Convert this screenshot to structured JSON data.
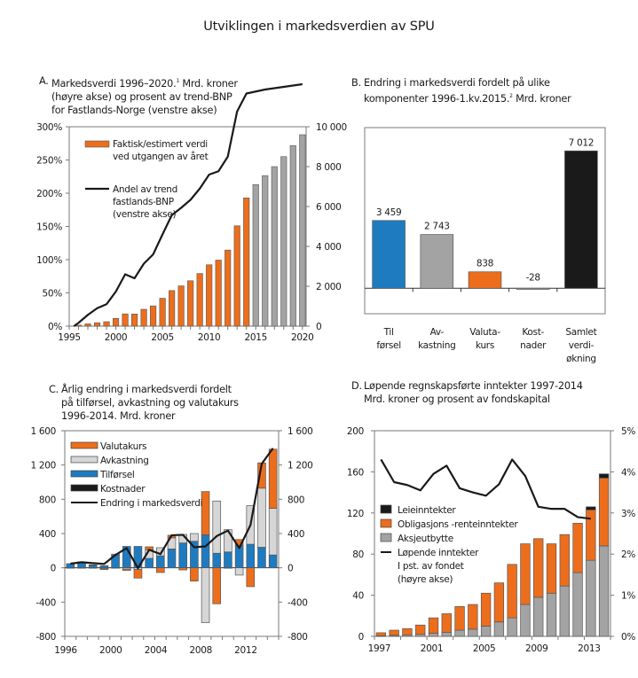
{
  "page_title": "Utviklingen i markedsverdien av SPU",
  "colors": {
    "orange": "#ec6e1c",
    "gray": "#a3a3a3",
    "lightgray": "#d6d6d6",
    "blue": "#1f7bc0",
    "black": "#1a1a1a"
  },
  "chart_data": [
    {
      "id": "A",
      "type": "bar",
      "title_letter": "A.",
      "title_lines": [
        "Markedsverdi 1996–2020.",
        "(høyre akse) og prosent av trend-BNP",
        "for Fastlands-Norge (venstre akse)"
      ],
      "title_sup": "1",
      "title_after_sup": " Mrd. kroner",
      "x": [
        1996,
        1997,
        1998,
        1999,
        2000,
        2001,
        2002,
        2003,
        2004,
        2005,
        2006,
        2007,
        2008,
        2009,
        2010,
        2011,
        2012,
        2013,
        2014,
        2015,
        2016,
        2017,
        2018,
        2019,
        2020
      ],
      "xticks": [
        "1995",
        "2000",
        "2005",
        "2010",
        "2015",
        "2020"
      ],
      "xtick_values": [
        1995,
        2000,
        2005,
        2010,
        2015,
        2020
      ],
      "bars": {
        "name": "Faktisk/estimert verdi ved utgangen av året",
        "values": [
          48,
          113,
          172,
          222,
          386,
          614,
          609,
          845,
          1016,
          1399,
          1784,
          2019,
          2275,
          2640,
          3077,
          3312,
          3816,
          5032,
          6431,
          7100,
          7550,
          8000,
          8500,
          9050,
          9600
        ],
        "estimated_from": 2015
      },
      "line": {
        "name": "Andel av trend fastlands-BNP (venstre akse)",
        "x": [
          1995.5,
          1996,
          1997,
          1998,
          1999,
          2000,
          2001,
          2002,
          2003,
          2004,
          2005,
          2006,
          2007,
          2008,
          2009,
          2010,
          2011,
          2012,
          2013,
          2014,
          2015,
          2016,
          2017,
          2018,
          2019,
          2020
        ],
        "values": [
          0,
          5,
          17,
          27,
          33,
          52,
          78,
          72,
          94,
          108,
          138,
          167,
          178,
          190,
          207,
          228,
          233,
          255,
          323,
          350,
          353,
          356,
          358,
          360,
          362,
          364
        ]
      },
      "legend": [
        {
          "label_lines": [
            "Faktisk/estimert verdi",
            "ved utgangen av året"
          ],
          "type": "bar",
          "color": "orange"
        },
        {
          "label_lines": [
            "Andel av trend",
            "fastlands-BNP",
            "(venstre akse)"
          ],
          "type": "line",
          "color": "black"
        }
      ],
      "yleft": {
        "ticks": [
          "0%",
          "50%",
          "100%",
          "150%",
          "200%",
          "250%",
          "300%"
        ],
        "range": [
          0,
          300
        ]
      },
      "yright": {
        "ticks": [
          "0",
          "2 000",
          "4 000",
          "6 000",
          "8 000",
          "10 000"
        ],
        "range": [
          0,
          10000
        ]
      }
    },
    {
      "id": "B",
      "type": "bar",
      "title_letter": "B.",
      "title_lines": [
        "Endring i markedsverdi fordelt på ulike",
        "komponenter 1996-1.kv.2015."
      ],
      "title_sup": "2",
      "title_after_sup": " Mrd. kroner",
      "categories": [
        [
          "Til",
          "førsel"
        ],
        [
          "Av-",
          "kastning"
        ],
        [
          "Valuta-",
          "kurs"
        ],
        [
          "Kost-",
          "nader"
        ],
        [
          "Samlet",
          "verdi-",
          "økning"
        ]
      ],
      "values": [
        3459,
        2743,
        838,
        -28,
        7012
      ],
      "labels": [
        "3 459",
        "2 743",
        "838",
        "-28",
        "7 012"
      ],
      "bar_colors": [
        "blue",
        "gray",
        "orange",
        "gray",
        "black"
      ],
      "ylim": [
        -1300,
        8200
      ]
    },
    {
      "id": "C",
      "type": "bar",
      "stacked": true,
      "title_letter": "C.",
      "title_lines": [
        "Årlig endring i markedsverdi fordelt",
        "på tilførsel, avkastning og valutakurs",
        "1996-2014. Mrd. kroner"
      ],
      "x": [
        1996,
        1997,
        1998,
        1999,
        2000,
        2001,
        2002,
        2003,
        2004,
        2005,
        2006,
        2007,
        2008,
        2009,
        2010,
        2011,
        2012,
        2013,
        2014
      ],
      "xticks": [
        "1996",
        "2000",
        "2004",
        "2008",
        "2012"
      ],
      "xtick_values": [
        1996,
        2000,
        2004,
        2008,
        2012
      ],
      "series": [
        {
          "name": "Tilførsel",
          "color": "blue",
          "values": [
            48,
            60,
            30,
            25,
            150,
            250,
            250,
            110,
            140,
            220,
            290,
            310,
            385,
            170,
            185,
            260,
            275,
            240,
            150
          ]
        },
        {
          "name": "Avkastning",
          "color": "lightgray",
          "values": [
            0,
            10,
            5,
            -10,
            10,
            -15,
            -20,
            100,
            95,
            130,
            100,
            90,
            -640,
            610,
            260,
            -85,
            450,
            690,
            545
          ]
        },
        {
          "name": "Valutakurs",
          "color": "orange",
          "values": [
            -5,
            -5,
            -5,
            -10,
            -5,
            -15,
            -100,
            35,
            -55,
            30,
            -25,
            -155,
            505,
            -420,
            -5,
            70,
            -220,
            295,
            690
          ]
        },
        {
          "name": "Kostnader",
          "color": "black",
          "values": [
            0,
            0,
            0,
            0,
            0,
            0,
            0,
            0,
            0,
            0,
            0,
            0,
            0,
            0,
            0,
            0,
            0,
            0,
            0
          ]
        }
      ],
      "line": {
        "name": "Endring i markedsverdi",
        "values": [
          48,
          65,
          55,
          45,
          150,
          230,
          -5,
          210,
          160,
          380,
          385,
          240,
          250,
          370,
          435,
          230,
          500,
          1215,
          1395
        ]
      },
      "legend": [
        "Valutakurs",
        "Avkastning",
        "Tilførsel",
        "Kostnader",
        "Endring i markedsverdi"
      ],
      "yticks": [
        "-800",
        "-400",
        "0",
        "400",
        "800",
        "1 200",
        "1 600"
      ],
      "ylim": [
        -800,
        1600
      ]
    },
    {
      "id": "D",
      "type": "bar",
      "stacked": true,
      "title_letter": "D.",
      "title_lines": [
        "Løpende regnskapsførte inntekter 1997-2014",
        "Mrd. kroner og prosent av fondskapital"
      ],
      "x": [
        1997,
        1998,
        1999,
        2000,
        2001,
        2002,
        2003,
        2004,
        2005,
        2006,
        2007,
        2008,
        2009,
        2010,
        2011,
        2012,
        2013,
        2014
      ],
      "xticks": [
        "1997",
        "2001",
        "2005",
        "2009",
        "2013"
      ],
      "xtick_values": [
        1997,
        2001,
        2005,
        2009,
        2013
      ],
      "series": [
        {
          "name": "Aksjeutbytte",
          "color": "gray",
          "values": [
            0.5,
            1,
            1.5,
            2,
            3,
            4,
            6,
            7,
            10,
            14,
            18,
            31,
            38,
            42,
            49,
            62,
            74,
            88
          ]
        },
        {
          "name": "Obligasjons -renteinntekter",
          "color": "orange",
          "values": [
            3,
            5,
            6,
            9,
            15,
            18,
            23,
            24,
            32,
            38,
            52,
            59,
            57,
            48,
            50,
            48,
            49,
            66
          ]
        },
        {
          "name": "Leieinntekter",
          "color": "black",
          "values": [
            0,
            0,
            0,
            0,
            0,
            0,
            0,
            0,
            0,
            0,
            0,
            0,
            0,
            0,
            0,
            0,
            3,
            4
          ]
        }
      ],
      "line": {
        "name": "Løpende inntekter I pst. av fondet (høyre akse)",
        "values": [
          4.3,
          3.75,
          3.68,
          3.55,
          3.95,
          4.15,
          3.6,
          3.5,
          3.42,
          3.7,
          4.3,
          3.9,
          3.15,
          3.1,
          3.1,
          2.9,
          2.86,
          null
        ]
      },
      "legend": [
        {
          "label_lines": [
            "Leieinntekter"
          ]
        },
        {
          "label_lines": [
            "Obligasjons -renteinntekter"
          ]
        },
        {
          "label_lines": [
            "Aksjeutbytte"
          ]
        },
        {
          "label_lines": [
            "Løpende inntekter",
            "I pst. av fondet",
            "(høyre akse)"
          ]
        }
      ],
      "yleft": {
        "ticks": [
          "0",
          "40",
          "80",
          "120",
          "160",
          "200"
        ],
        "range": [
          0,
          200
        ]
      },
      "yright": {
        "ticks": [
          "0%",
          "1%",
          "2%",
          "3%",
          "4%",
          "5%"
        ],
        "range": [
          0,
          5
        ]
      }
    }
  ]
}
